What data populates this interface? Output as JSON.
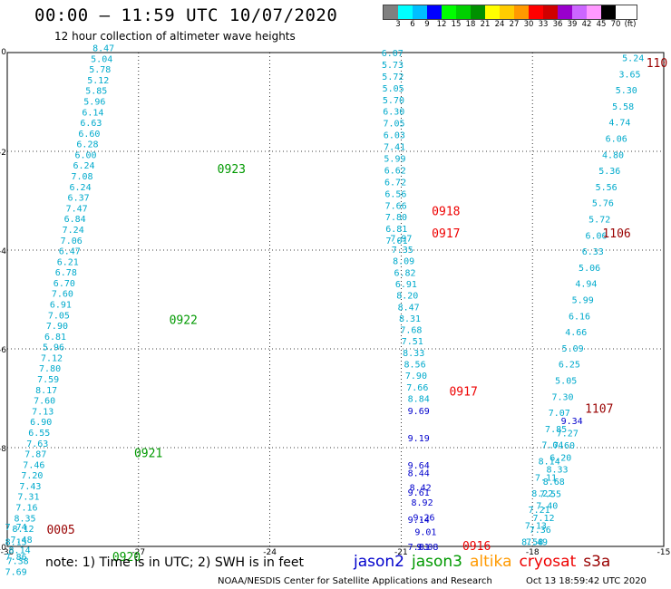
{
  "header": {
    "title": "00:00 – 11:59 UTC 10/07/2020",
    "subtitle": "12 hour collection of altimeter wave heights"
  },
  "legend": {
    "colors": [
      "#808080",
      "#00ffff",
      "#00bfff",
      "#0000ff",
      "#00ff00",
      "#00d000",
      "#009000",
      "#ffff00",
      "#ffcc00",
      "#ff9900",
      "#ff0000",
      "#d00000",
      "#9900cc",
      "#cc66ff",
      "#ff99ff",
      "#000000"
    ],
    "labels": [
      "3",
      "6",
      "9",
      "12",
      "15",
      "18",
      "21",
      "24",
      "27",
      "30",
      "33",
      "36",
      "39",
      "42",
      "45",
      "70",
      "(ft)"
    ]
  },
  "footer": {
    "note": "note:  1) Time is in UTC;  2) SWH is in feet",
    "credit": "NOAA/NESDIS Center for Satellite Applications and Research",
    "timestamp": "Oct 13 18:59:42 UTC 2020"
  },
  "satellites": [
    {
      "name": "jason2",
      "color": "#0000cc"
    },
    {
      "name": "jason3",
      "color": "#009900"
    },
    {
      "name": "altika",
      "color": "#ff9900"
    },
    {
      "name": "cryosat",
      "color": "#ee0000"
    },
    {
      "name": "s3a",
      "color": "#990000"
    }
  ],
  "chart_data": {
    "type": "scatter",
    "xlim": [
      -30,
      -15
    ],
    "ylim": [
      -10,
      0
    ],
    "x_ticks": [
      "-30",
      "-27",
      "-24",
      "-21",
      "-18",
      "-15"
    ],
    "y_ticks": [
      "0",
      "-2",
      "-4",
      "-6",
      "-8",
      "-10"
    ],
    "grid": true,
    "tracks": [
      {
        "x0": -27.8,
        "y0": 0.1,
        "x1": -29.8,
        "y1": -10.5,
        "color": "#00aacc",
        "values": [
          "8.47",
          "5.04",
          "5.78",
          "5.12",
          "5.85",
          "5.96",
          "6.14",
          "6.63",
          "6.60",
          "6.28",
          "6.00",
          "6.24",
          "7.08",
          "6.24",
          "6.37",
          "7.47",
          "6.84",
          "7.24",
          "7.06",
          "6.47",
          "6.21",
          "6.78",
          "6.70",
          "7.60",
          "6.91",
          "7.05",
          "7.90",
          "6.81",
          "5.96",
          "7.12",
          "7.80",
          "7.59",
          "8.17",
          "7.60",
          "7.13",
          "6.90",
          "6.55",
          "7.63",
          "7.87",
          "7.46",
          "7.20",
          "7.43",
          "7.31",
          "7.16",
          "8.35",
          "8.12",
          "7.48",
          "8.14",
          "7.38",
          "7.69"
        ]
      },
      {
        "x0": -29.8,
        "y0": -9.6,
        "x1": -29.8,
        "y1": -10.2,
        "color": "#00aacc",
        "values": [
          "7.74",
          "8.15",
          "7.86"
        ]
      },
      {
        "x0": -21.2,
        "y0": 0.0,
        "x1": -21.1,
        "y1": -3.8,
        "color": "#00aacc",
        "values": [
          "6.07",
          "5.73",
          "5.72",
          "5.05",
          "5.70",
          "6.30",
          "7.05",
          "6.03",
          "7.41",
          "5.99",
          "6.62",
          "6.72",
          "6.56",
          "7.66",
          "7.80",
          "6.81",
          "7.01"
        ]
      },
      {
        "x0": -21.0,
        "y0": -3.75,
        "x1": -20.6,
        "y1": -7.0,
        "color": "#00aacc",
        "values": [
          "7.97",
          "7.35",
          "8.09",
          "6.82",
          "6.91",
          "8.20",
          "8.47",
          "8.31",
          "7.68",
          "7.51",
          "8.33",
          "8.56",
          "7.90",
          "7.66",
          "8.84"
        ]
      },
      {
        "x0": -20.6,
        "y0": -7.25,
        "x1": -20.6,
        "y1": -10.0,
        "color": "#0000cc",
        "values": [
          "9.69",
          "9.19",
          "9.64",
          "9.61",
          "9.14",
          "7.81"
        ]
      },
      {
        "x0": -20.6,
        "y0": -8.5,
        "x1": -20.4,
        "y1": -10.0,
        "color": "#0000cc",
        "values": [
          "8.44",
          "8.42",
          "8.92",
          "9.26",
          "9.01",
          "9.08"
        ]
      },
      {
        "x0": -15.7,
        "y0": -0.1,
        "x1": -18.0,
        "y1": -9.9,
        "color": "#00aacc",
        "values": [
          "5.24",
          "3.65",
          "5.30",
          "5.58",
          "4.74",
          "6.06",
          "4.80",
          "5.36",
          "5.56",
          "5.76",
          "5.72",
          "6.06",
          "6.33",
          "5.06",
          "4.94",
          "5.99",
          "6.16",
          "4.66",
          "5.09",
          "6.25",
          "5.05",
          "7.30",
          "7.07",
          "7.85",
          "7.04",
          "8.14",
          "7.11",
          "8.22",
          "7.21",
          "7.13",
          "8.58"
        ]
      },
      {
        "x0": -17.1,
        "y0": -7.45,
        "x1": -17.1,
        "y1": -7.45,
        "color": "#0000cc",
        "values": [
          "9.34"
        ]
      },
      {
        "x0": -17.2,
        "y0": -7.7,
        "x1": -17.9,
        "y1": -9.9,
        "color": "#00aacc",
        "values": [
          "7.27",
          "7.60",
          "6.20",
          "8.33",
          "8.68",
          "7.55",
          "7.40",
          "7.12",
          "7.36",
          "7.49"
        ]
      }
    ],
    "time_labels": [
      {
        "text": "0923",
        "x": -25.2,
        "y": -2.35,
        "color": "#009900"
      },
      {
        "text": "0922",
        "x": -26.3,
        "y": -5.4,
        "color": "#009900"
      },
      {
        "text": "0921",
        "x": -27.1,
        "y": -8.1,
        "color": "#009900"
      },
      {
        "text": "0920",
        "x": -27.6,
        "y": -10.2,
        "color": "#009900"
      },
      {
        "text": "0005",
        "x": -29.1,
        "y": -9.65,
        "color": "#990000"
      },
      {
        "text": "0918",
        "x": -20.3,
        "y": -3.2,
        "color": "#ee0000"
      },
      {
        "text": "0917",
        "x": -20.3,
        "y": -3.65,
        "color": "#ee0000"
      },
      {
        "text": "0917",
        "x": -19.9,
        "y": -6.85,
        "color": "#ee0000"
      },
      {
        "text": "0916",
        "x": -19.6,
        "y": -9.98,
        "color": "#ee0000"
      },
      {
        "text": "1106",
        "x": -16.4,
        "y": -3.65,
        "color": "#990000"
      },
      {
        "text": "1107",
        "x": -16.8,
        "y": -7.2,
        "color": "#990000"
      },
      {
        "text": "110",
        "x": -15.4,
        "y": -0.2,
        "color": "#990000"
      }
    ]
  }
}
